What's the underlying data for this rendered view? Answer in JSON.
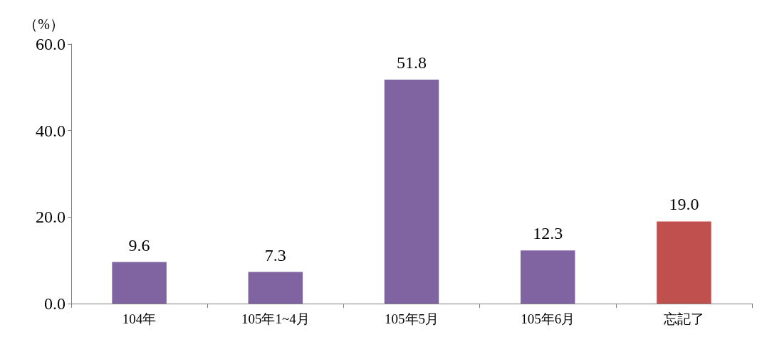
{
  "chart_data": {
    "type": "bar",
    "ylabel": "（%）",
    "categories": [
      "104年",
      "105年1~4月",
      "105年5月",
      "105年6月",
      "忘記了"
    ],
    "values": [
      9.6,
      7.3,
      51.8,
      12.3,
      19.0
    ],
    "colors": [
      "#8064a2",
      "#8064a2",
      "#8064a2",
      "#8064a2",
      "#c0504d"
    ],
    "ylim": [
      0,
      60
    ],
    "yticks": [
      {
        "value": 0,
        "label": "0.0"
      },
      {
        "value": 20,
        "label": "20.0"
      },
      {
        "value": 40,
        "label": "40.0"
      },
      {
        "value": 60,
        "label": "60.0"
      }
    ],
    "value_labels": [
      "9.6",
      "7.3",
      "51.8",
      "12.3",
      "19.0"
    ],
    "grid": false
  }
}
